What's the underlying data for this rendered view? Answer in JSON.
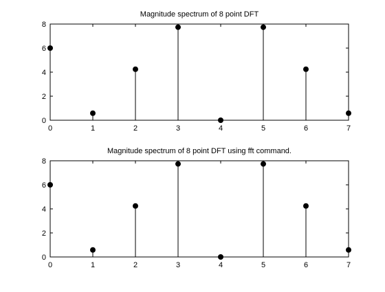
{
  "figure": {
    "background": "#ffffff",
    "axes_color": "#000000",
    "stem_color": "#000000"
  },
  "chart_data": [
    {
      "type": "stem",
      "title": "Magnitude spectrum of 8 point DFT",
      "xlabel": "",
      "ylabel": "",
      "x": [
        0,
        1,
        2,
        3,
        4,
        5,
        6,
        7
      ],
      "values": [
        6,
        0.586,
        4.243,
        7.737,
        0,
        7.737,
        4.243,
        0.586
      ],
      "xlim": [
        0,
        7
      ],
      "ylim": [
        0,
        8
      ],
      "xticks": [
        "0",
        "1",
        "2",
        "3",
        "4",
        "5",
        "6",
        "7"
      ],
      "yticks": [
        "0",
        "2",
        "4",
        "6",
        "8"
      ],
      "grid": false,
      "marker": "filled-circle"
    },
    {
      "type": "stem",
      "title": "Magnitude spectrum of 8 point DFT using fft command.",
      "xlabel": "",
      "ylabel": "",
      "x": [
        0,
        1,
        2,
        3,
        4,
        5,
        6,
        7
      ],
      "values": [
        6,
        0.586,
        4.243,
        7.737,
        0,
        7.737,
        4.243,
        0.586
      ],
      "xlim": [
        0,
        7
      ],
      "ylim": [
        0,
        8
      ],
      "xticks": [
        "0",
        "1",
        "2",
        "3",
        "4",
        "5",
        "6",
        "7"
      ],
      "yticks": [
        "0",
        "2",
        "4",
        "6",
        "8"
      ],
      "grid": false,
      "marker": "filled-circle"
    }
  ]
}
